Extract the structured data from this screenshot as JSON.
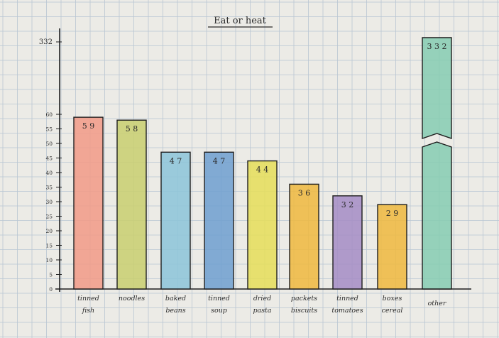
{
  "chart_data": {
    "type": "bar",
    "title": "Eat or heat",
    "xlabel": "",
    "ylabel": "",
    "categories": [
      [
        "tinned",
        "fish"
      ],
      [
        "noodles"
      ],
      [
        "baked",
        "beans"
      ],
      [
        "tinned",
        "soup"
      ],
      [
        "dried",
        "pasta"
      ],
      [
        "packets",
        "biscuits"
      ],
      [
        "tinned",
        "tomatoes"
      ],
      [
        "boxes",
        "cereal"
      ],
      [
        "other"
      ]
    ],
    "values": [
      59,
      58,
      47,
      47,
      44,
      36,
      32,
      29,
      332
    ],
    "value_labels": [
      "5 9",
      "5 8",
      "4 7",
      "4 7",
      "4 4",
      "3 6",
      "3 2",
      "2 9",
      "3 3 2"
    ],
    "colors": [
      "#f29a86",
      "#c9cf6e",
      "#8cc4d8",
      "#6f9fcf",
      "#e6de58",
      "#f0b93d",
      "#a58cc4",
      "#f0b93d",
      "#86ccb2"
    ],
    "y_ticks": [
      0,
      5,
      10,
      15,
      20,
      25,
      30,
      35,
      40,
      45,
      50,
      55,
      60,
      332
    ],
    "y_break": true,
    "ylim": [
      0,
      60
    ],
    "grid": true
  }
}
